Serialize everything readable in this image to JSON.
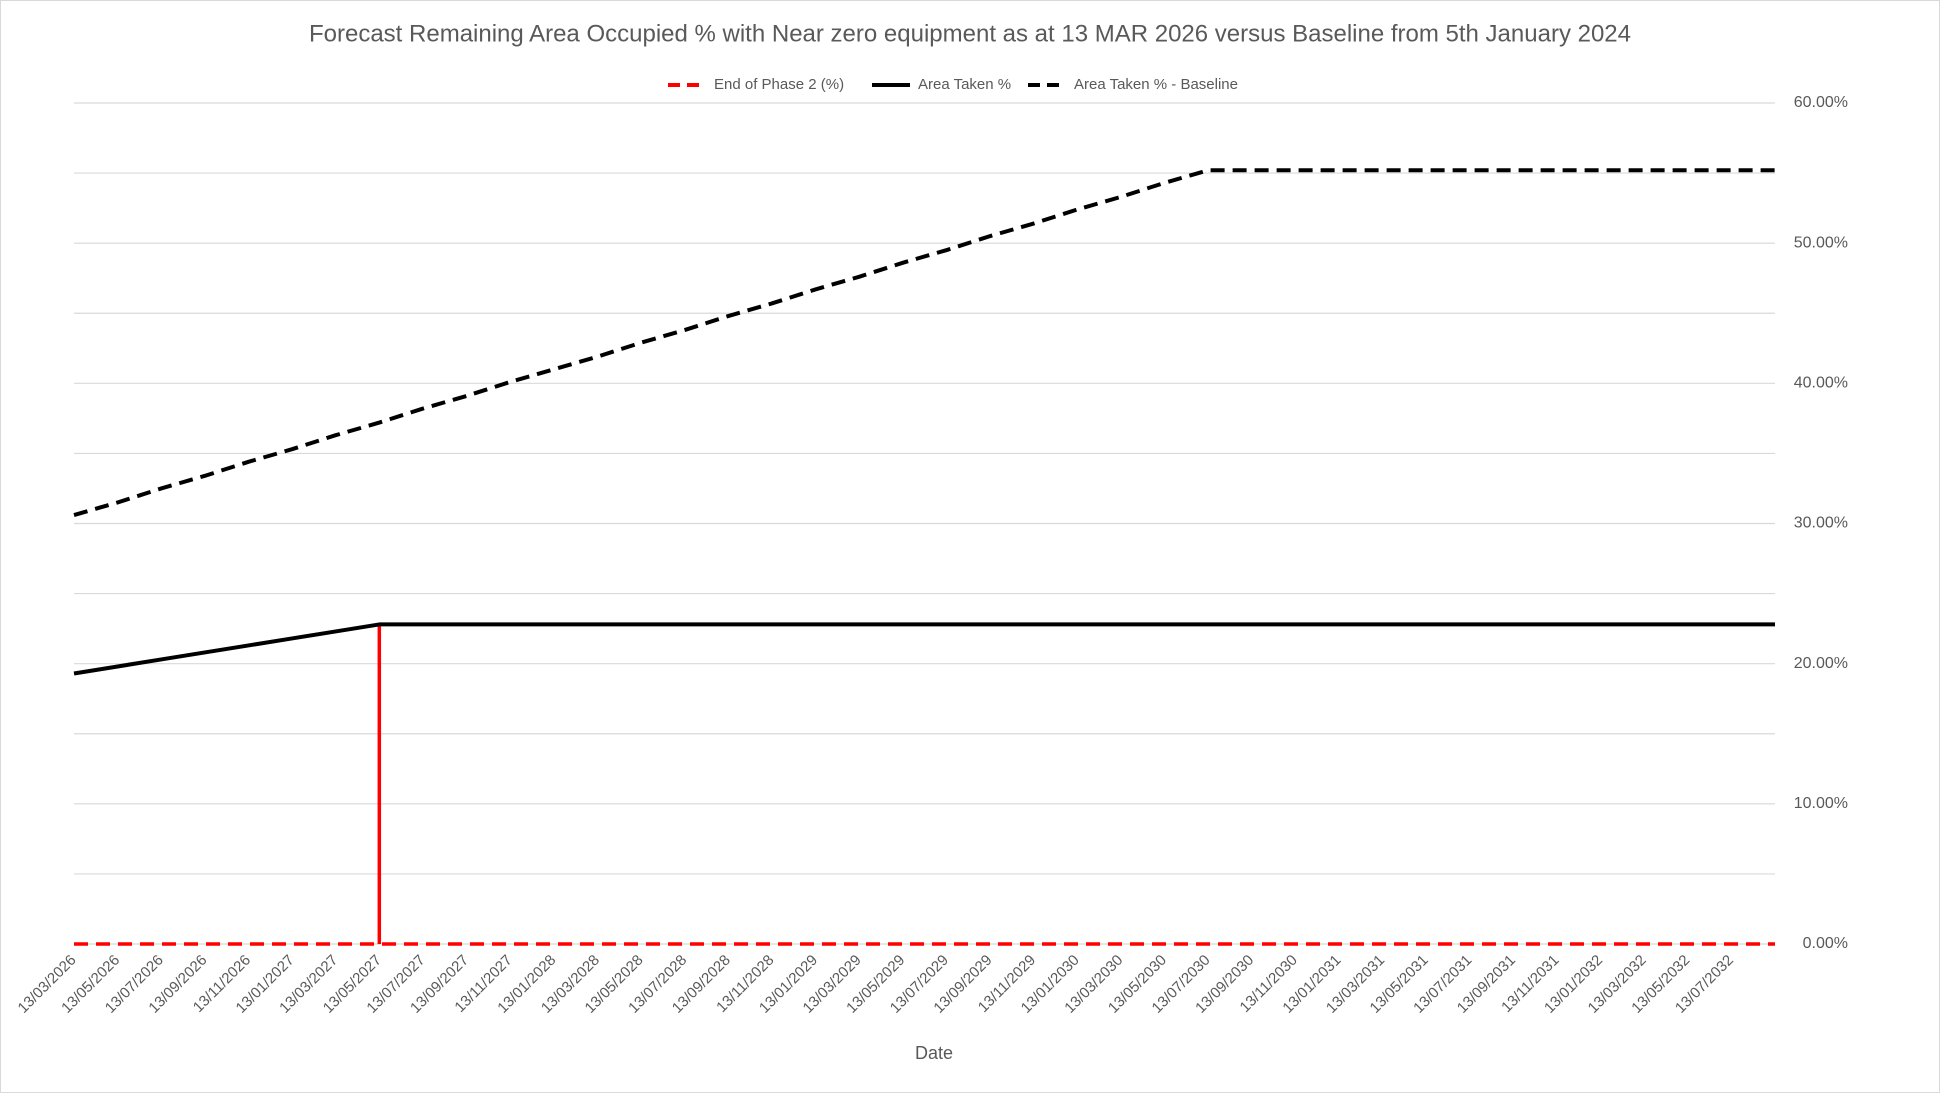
{
  "chart_data": {
    "type": "line",
    "title": "Forecast Remaining Area Occupied % with Near zero equipment as at 13 MAR 2026 versus Baseline from 5th January 2024",
    "x_label": "Date",
    "categories": [
      "13/03/2026",
      "13/05/2026",
      "13/07/2026",
      "13/09/2026",
      "13/11/2026",
      "13/01/2027",
      "13/03/2027",
      "13/05/2027",
      "13/07/2027",
      "13/09/2027",
      "13/11/2027",
      "13/01/2028",
      "13/03/2028",
      "13/05/2028",
      "13/07/2028",
      "13/09/2028",
      "13/11/2028",
      "13/01/2029",
      "13/03/2029",
      "13/05/2029",
      "13/07/2029",
      "13/09/2029",
      "13/11/2029",
      "13/01/2030",
      "13/03/2030",
      "13/05/2030",
      "13/07/2030",
      "13/09/2030",
      "13/11/2030",
      "13/01/2031",
      "13/03/2031",
      "13/05/2031",
      "13/07/2031",
      "13/09/2031",
      "13/11/2031",
      "13/01/2032",
      "13/03/2032",
      "13/05/2032",
      "13/07/2032",
      null
    ],
    "series": [
      {
        "name": "End of Phase 2 (%)",
        "color": "#ff0000",
        "style": "drop",
        "values": [
          0,
          0,
          0,
          0,
          0,
          0,
          0,
          22.8,
          0,
          0,
          0,
          0,
          0,
          0,
          0,
          0,
          0,
          0,
          0,
          0,
          0,
          0,
          0,
          0,
          0,
          0,
          0,
          0,
          0,
          0,
          0,
          0,
          0,
          0,
          0,
          0,
          0,
          0,
          0,
          0
        ]
      },
      {
        "name": "Area Taken %",
        "color": "#000000",
        "style": "solid",
        "values": [
          19.3,
          19.8,
          20.3,
          20.8,
          21.3,
          21.8,
          22.3,
          22.8,
          22.8,
          22.8,
          22.8,
          22.8,
          22.8,
          22.8,
          22.8,
          22.8,
          22.8,
          22.8,
          22.8,
          22.8,
          22.8,
          22.8,
          22.8,
          22.8,
          22.8,
          22.8,
          22.8,
          22.8,
          22.8,
          22.8,
          22.8,
          22.8,
          22.8,
          22.8,
          22.8,
          22.8,
          22.8,
          22.8,
          22.8,
          22.8
        ]
      },
      {
        "name": "Area Taken % - Baseline",
        "color": "#000000",
        "style": "dashed",
        "values": [
          30.6,
          31.5,
          32.5,
          33.4,
          34.4,
          35.3,
          36.3,
          37.2,
          38.2,
          39.1,
          40.1,
          41.0,
          41.9,
          42.9,
          43.8,
          44.8,
          45.7,
          46.7,
          47.6,
          48.6,
          49.5,
          50.5,
          51.4,
          52.4,
          53.3,
          54.3,
          55.2,
          55.2,
          55.2,
          55.2,
          55.2,
          55.2,
          55.2,
          55.2,
          55.2,
          55.2,
          55.2,
          55.2,
          55.2,
          55.2
        ]
      }
    ],
    "ylim": [
      0,
      60
    ],
    "yticks": [
      {
        "value": 0,
        "label": "0.00%"
      },
      {
        "value": 10,
        "label": "10.00%"
      },
      {
        "value": 20,
        "label": "20.00%"
      },
      {
        "value": 30,
        "label": "30.00%"
      },
      {
        "value": 40,
        "label": "40.00%"
      },
      {
        "value": 50,
        "label": "50.00%"
      },
      {
        "value": 60,
        "label": "60.00%"
      }
    ],
    "y_axis_side": "right",
    "grid": true,
    "legend": "top"
  }
}
